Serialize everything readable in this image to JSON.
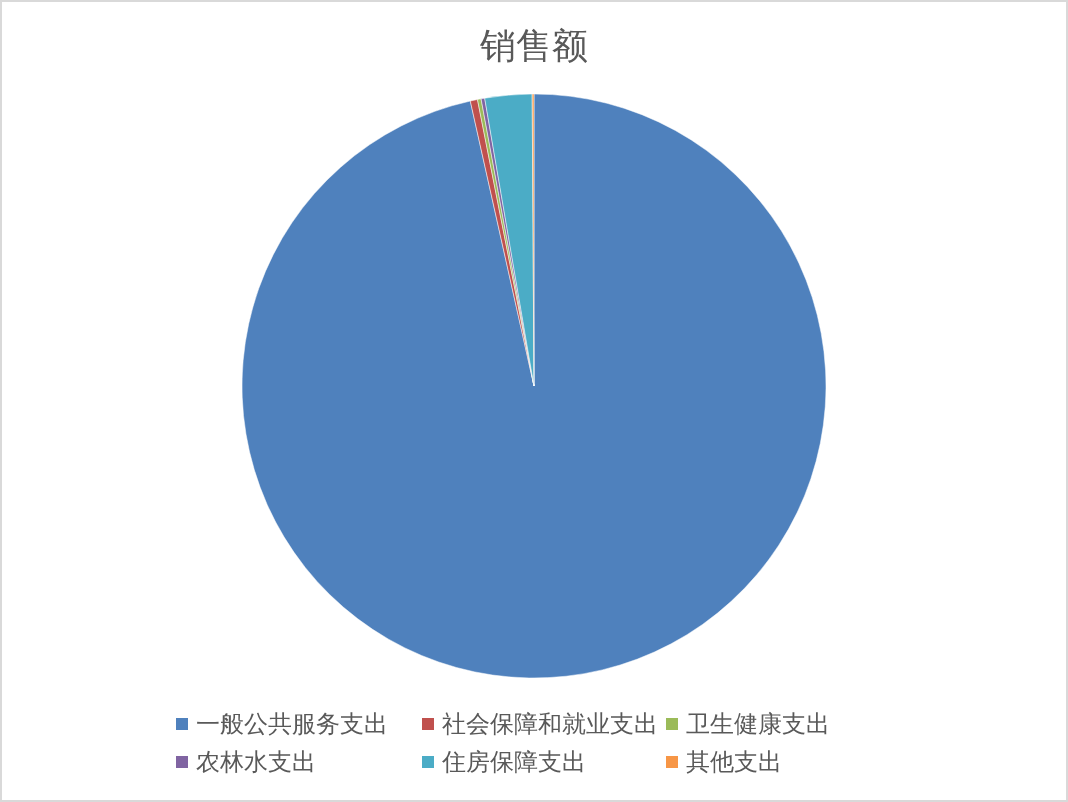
{
  "chart_data": {
    "type": "pie",
    "title": "销售额",
    "categories": [
      "一般公共服务支出",
      "社会保障和就业支出",
      "卫生健康支出",
      "农林水支出",
      "住房保障支出",
      "其他支出"
    ],
    "values": [
      96.5,
      0.4,
      0.2,
      0.2,
      2.6,
      0.1
    ],
    "colors": [
      "#4f81bd",
      "#c0504d",
      "#9bbb59",
      "#8064a2",
      "#4bacc6",
      "#f79646"
    ],
    "legend": "bottom"
  }
}
